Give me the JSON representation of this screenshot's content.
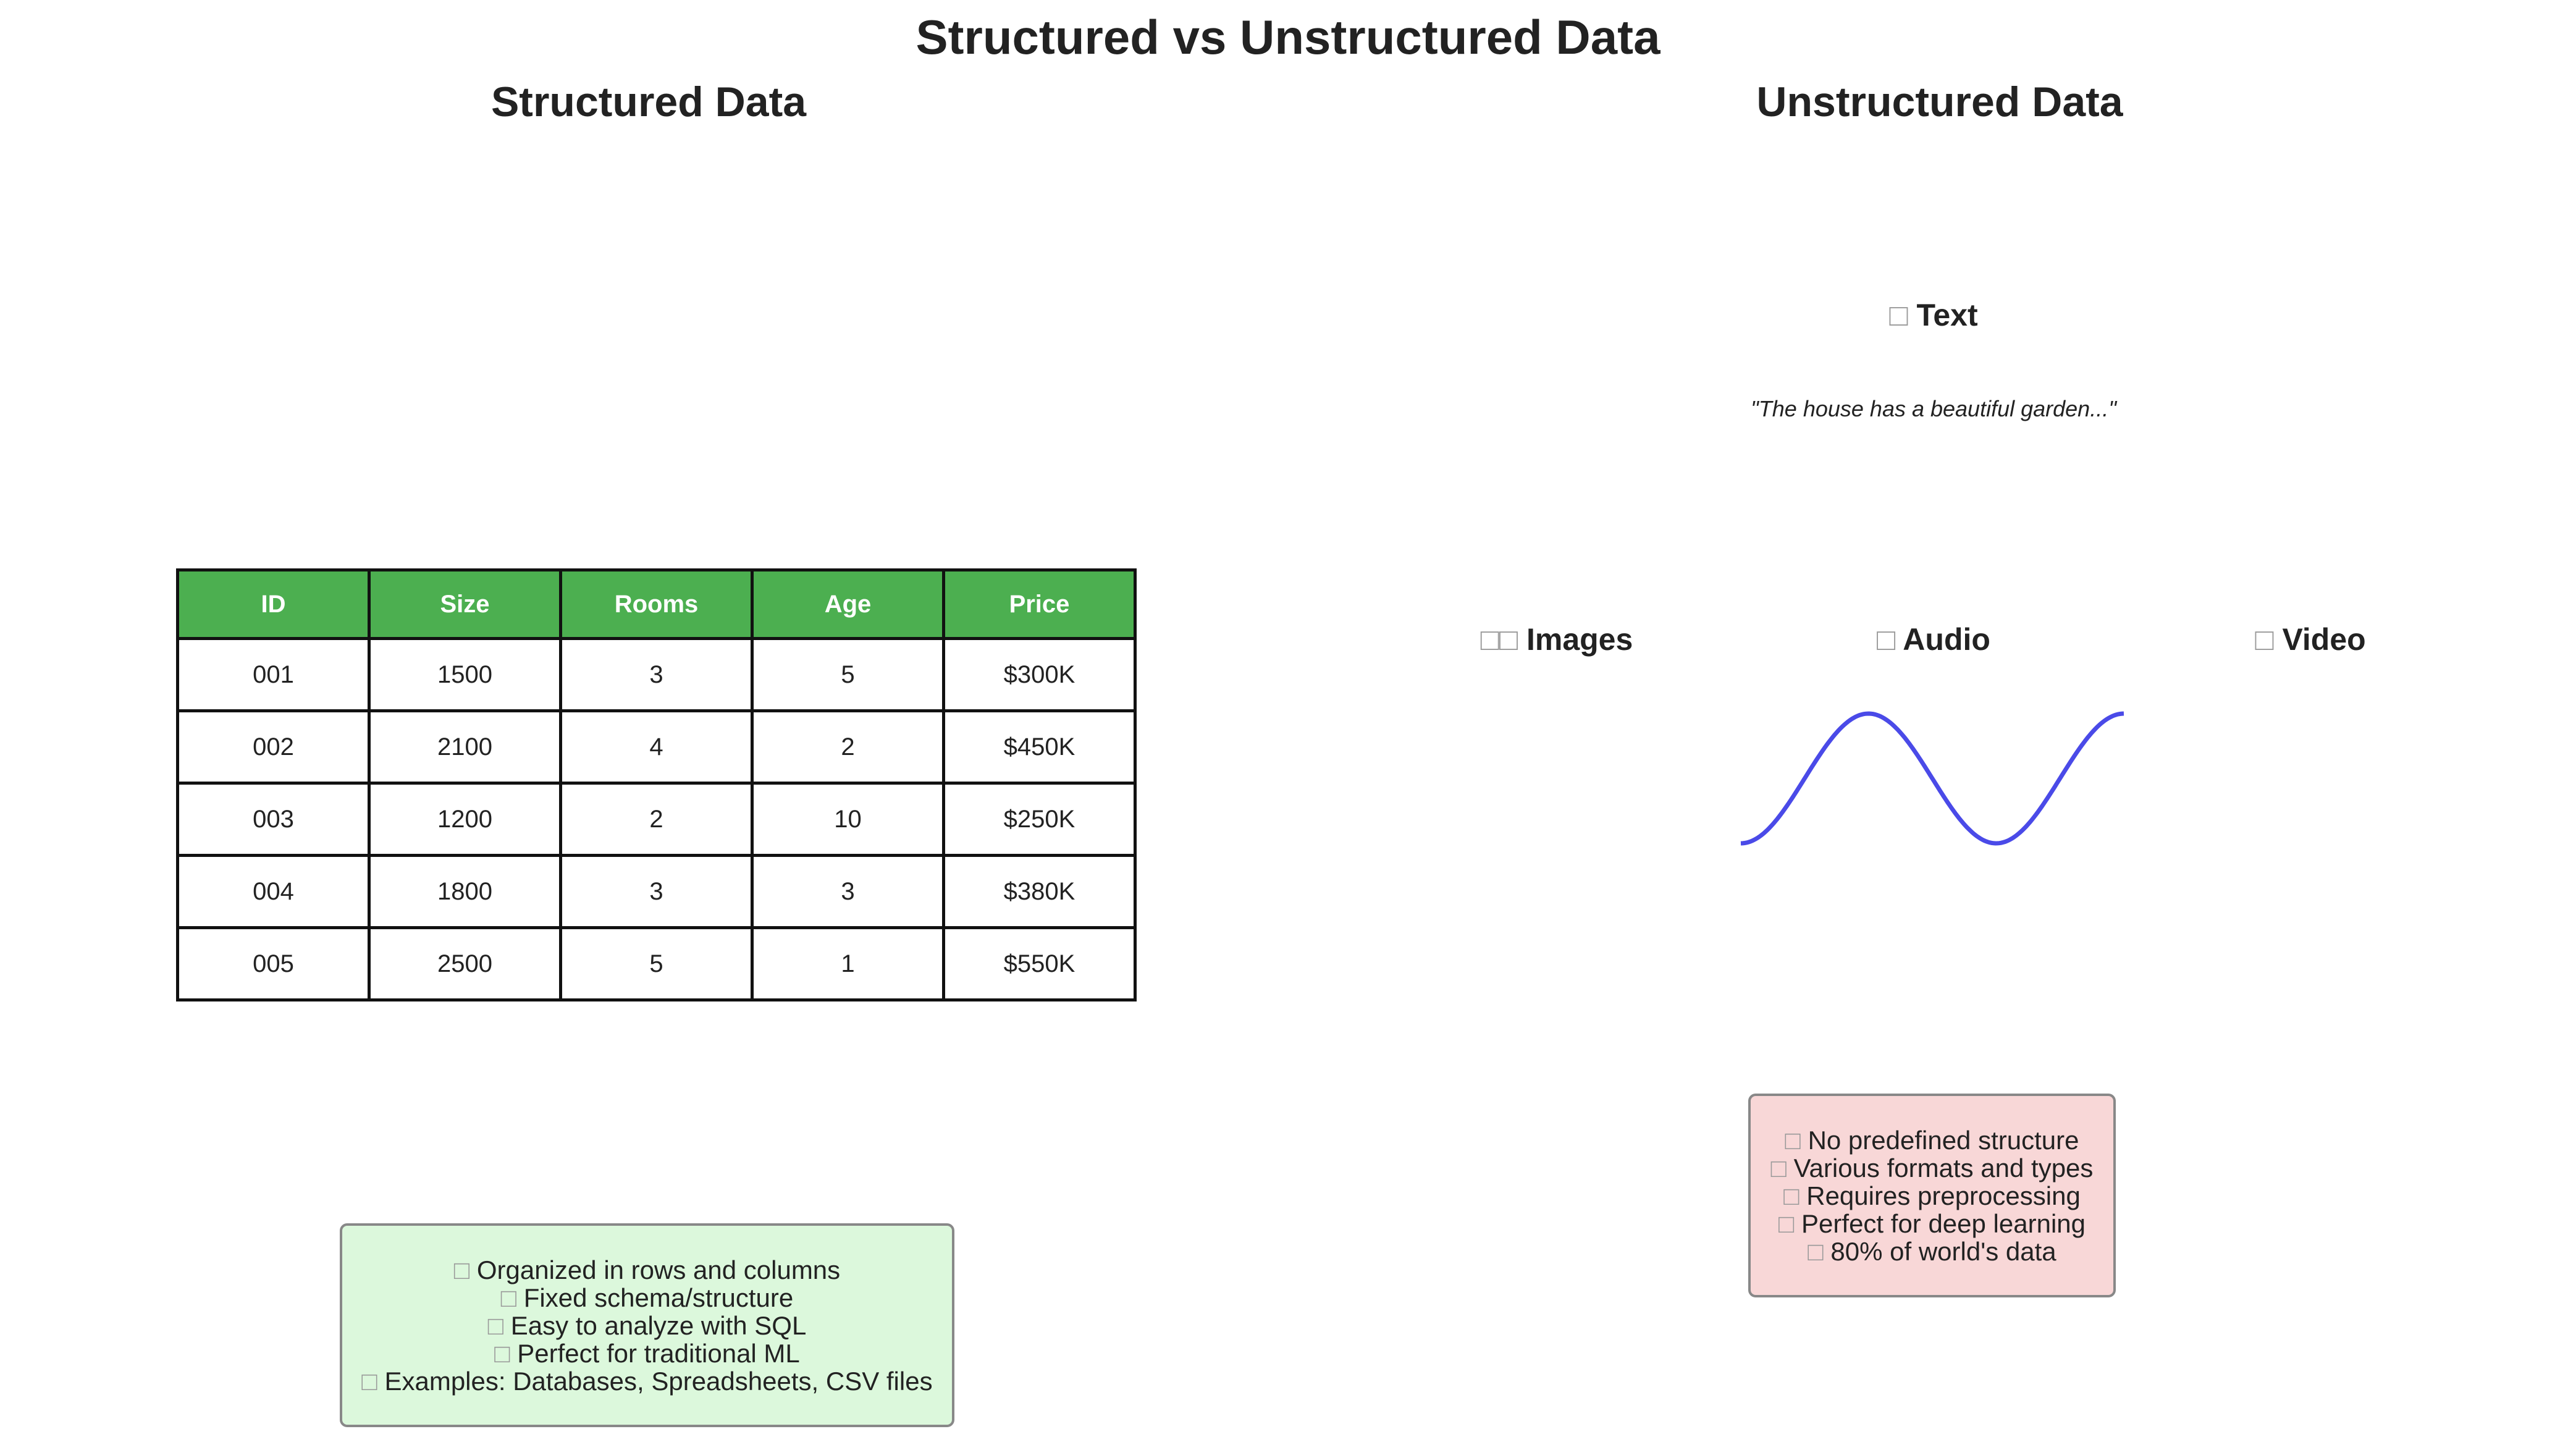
{
  "title": "Structured vs Unstructured Data",
  "structured": {
    "title": "Structured Data",
    "table": {
      "headers": [
        "ID",
        "Size",
        "Rooms",
        "Age",
        "Price"
      ],
      "rows": [
        [
          "001",
          "1500",
          "3",
          "5",
          "$300K"
        ],
        [
          "002",
          "2100",
          "4",
          "2",
          "$450K"
        ],
        [
          "003",
          "1200",
          "2",
          "10",
          "$250K"
        ],
        [
          "004",
          "1800",
          "3",
          "3",
          "$380K"
        ],
        [
          "005",
          "2500",
          "5",
          "1",
          "$550K"
        ]
      ]
    },
    "info_lines": [
      "Organized in rows and columns",
      "Fixed schema/structure",
      "Easy to analyze with SQL",
      "Perfect for traditional ML",
      "Examples: Databases, Spreadsheets, CSV files"
    ]
  },
  "unstructured": {
    "title": "Unstructured Data",
    "text_label": "Text",
    "text_quote": "\"The house has a beautiful garden...\"",
    "images_label": "Images",
    "audio_label": "Audio",
    "video_label": "Video",
    "info_lines": [
      "No predefined structure",
      "Various formats and types",
      "Requires preprocessing",
      "Perfect for deep learning",
      "80% of world's data"
    ]
  },
  "colors": {
    "header_green": "#4caf50",
    "structured_box": "#dcf8dc",
    "unstructured_box": "#f8d7d7",
    "wave": "#4a4ae8"
  },
  "icons": {
    "missing_glyph": "placeholder-box-icon"
  }
}
